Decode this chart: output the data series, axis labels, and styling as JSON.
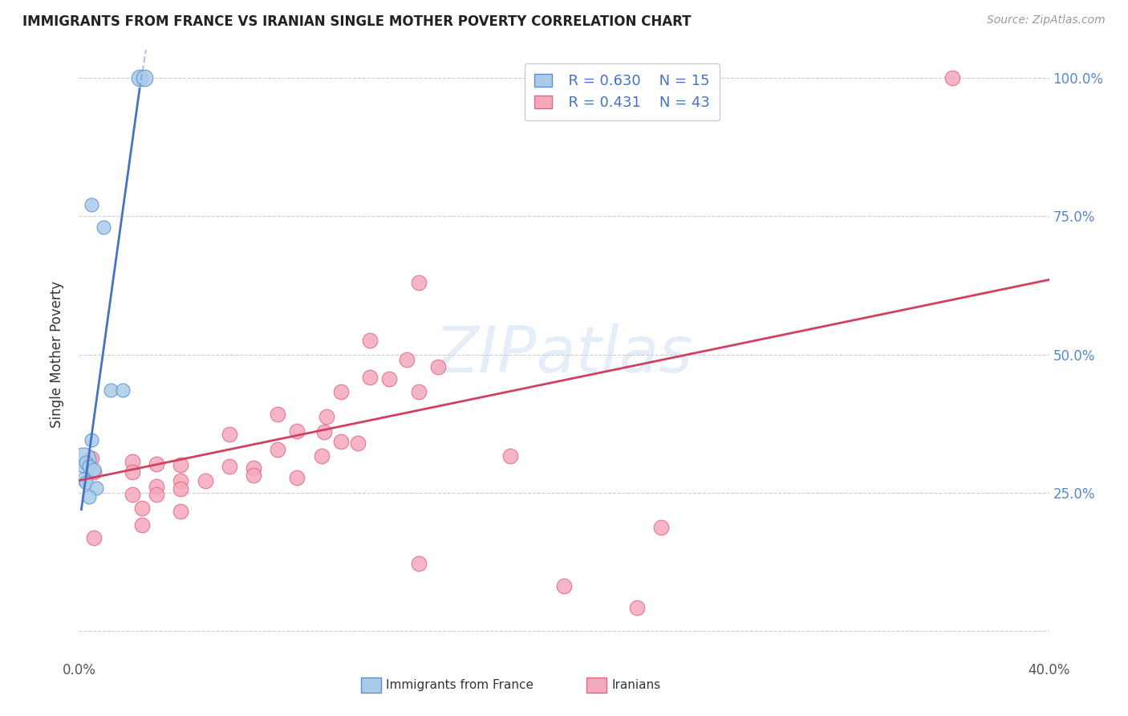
{
  "title": "IMMIGRANTS FROM FRANCE VS IRANIAN SINGLE MOTHER POVERTY CORRELATION CHART",
  "source": "Source: ZipAtlas.com",
  "ylabel": "Single Mother Poverty",
  "xlim": [
    0.0,
    0.4
  ],
  "ylim": [
    -0.05,
    1.05
  ],
  "legend_R1": "R = 0.630",
  "legend_N1": "N = 15",
  "legend_R2": "R = 0.431",
  "legend_N2": "N = 43",
  "color_blue": "#A8CCE8",
  "color_pink": "#F4A8BC",
  "color_blue_line": "#5B8FD0",
  "color_pink_line": "#E06880",
  "color_blue_dark": "#4472C4",
  "color_pink_dark": "#D04060",
  "watermark": "ZIPatlas",
  "france_points": [
    [
      0.025,
      1.0
    ],
    [
      0.027,
      1.0
    ],
    [
      0.005,
      0.77
    ],
    [
      0.01,
      0.73
    ],
    [
      0.013,
      0.435
    ],
    [
      0.018,
      0.435
    ],
    [
      0.005,
      0.345
    ],
    [
      0.002,
      0.31
    ],
    [
      0.003,
      0.305
    ],
    [
      0.004,
      0.298
    ],
    [
      0.006,
      0.292
    ],
    [
      0.002,
      0.275
    ],
    [
      0.003,
      0.268
    ],
    [
      0.007,
      0.258
    ],
    [
      0.004,
      0.242
    ]
  ],
  "france_point_sizes": [
    220,
    220,
    150,
    150,
    150,
    150,
    150,
    500,
    150,
    150,
    150,
    150,
    150,
    150,
    150
  ],
  "iran_points": [
    [
      0.36,
      1.0
    ],
    [
      0.14,
      0.63
    ],
    [
      0.12,
      0.525
    ],
    [
      0.135,
      0.49
    ],
    [
      0.148,
      0.477
    ],
    [
      0.12,
      0.458
    ],
    [
      0.128,
      0.456
    ],
    [
      0.108,
      0.432
    ],
    [
      0.14,
      0.432
    ],
    [
      0.082,
      0.392
    ],
    [
      0.102,
      0.387
    ],
    [
      0.09,
      0.362
    ],
    [
      0.101,
      0.36
    ],
    [
      0.062,
      0.356
    ],
    [
      0.108,
      0.342
    ],
    [
      0.115,
      0.34
    ],
    [
      0.082,
      0.328
    ],
    [
      0.1,
      0.317
    ],
    [
      0.178,
      0.316
    ],
    [
      0.005,
      0.312
    ],
    [
      0.022,
      0.307
    ],
    [
      0.032,
      0.302
    ],
    [
      0.042,
      0.3
    ],
    [
      0.062,
      0.297
    ],
    [
      0.072,
      0.295
    ],
    [
      0.006,
      0.288
    ],
    [
      0.022,
      0.287
    ],
    [
      0.072,
      0.282
    ],
    [
      0.09,
      0.277
    ],
    [
      0.042,
      0.272
    ],
    [
      0.052,
      0.271
    ],
    [
      0.032,
      0.262
    ],
    [
      0.042,
      0.257
    ],
    [
      0.022,
      0.247
    ],
    [
      0.032,
      0.247
    ],
    [
      0.026,
      0.222
    ],
    [
      0.042,
      0.217
    ],
    [
      0.026,
      0.192
    ],
    [
      0.24,
      0.188
    ],
    [
      0.006,
      0.168
    ],
    [
      0.14,
      0.122
    ],
    [
      0.2,
      0.082
    ],
    [
      0.23,
      0.042
    ]
  ],
  "france_trendline_solid": [
    [
      0.001,
      0.22
    ],
    [
      0.025,
      0.98
    ]
  ],
  "france_trendline_dashed": [
    [
      0.025,
      0.98
    ],
    [
      0.04,
      1.38
    ]
  ],
  "iran_trendline": [
    [
      0.0,
      0.272
    ],
    [
      0.4,
      0.635
    ]
  ]
}
